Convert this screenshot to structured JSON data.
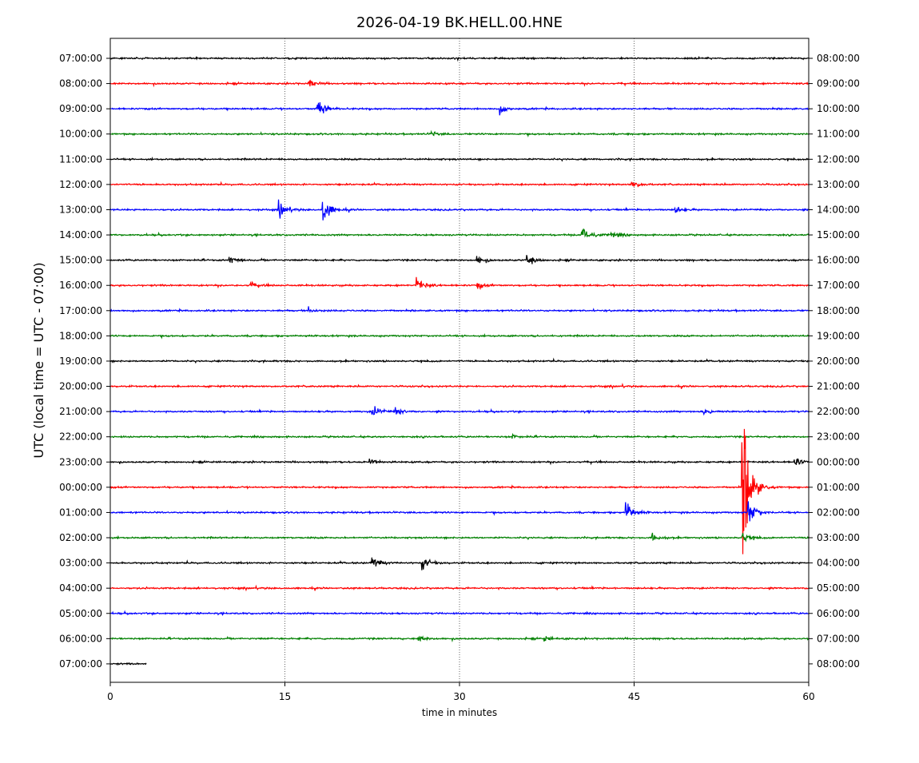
{
  "chart_data": {
    "type": "line",
    "title": "2026-04-19 BK.HELL.00.HNE",
    "xlabel": "time in minutes",
    "ylabel": "UTC (local time = UTC - 07:00)",
    "xlim": [
      0,
      60
    ],
    "x_ticks": [
      "0",
      "15",
      "30",
      "45",
      "60"
    ],
    "x_tick_values": [
      0,
      15,
      30,
      45,
      60
    ],
    "grid": "vertical dotted lines at 15, 30, 45",
    "left_tick_labels": [
      "07:00:00",
      "08:00:00",
      "09:00:00",
      "10:00:00",
      "11:00:00",
      "12:00:00",
      "13:00:00",
      "14:00:00",
      "15:00:00",
      "16:00:00",
      "17:00:00",
      "18:00:00",
      "19:00:00",
      "20:00:00",
      "21:00:00",
      "22:00:00",
      "23:00:00",
      "00:00:00",
      "01:00:00",
      "02:00:00",
      "03:00:00",
      "04:00:00",
      "05:00:00",
      "06:00:00",
      "07:00:00"
    ],
    "right_tick_labels": [
      "08:00:00",
      "09:00:00",
      "10:00:00",
      "11:00:00",
      "12:00:00",
      "13:00:00",
      "14:00:00",
      "15:00:00",
      "16:00:00",
      "17:00:00",
      "18:00:00",
      "19:00:00",
      "20:00:00",
      "21:00:00",
      "22:00:00",
      "23:00:00",
      "00:00:00",
      "01:00:00",
      "02:00:00",
      "03:00:00",
      "04:00:00",
      "05:00:00",
      "06:00:00",
      "07:00:00",
      "08:00:00"
    ],
    "trace_colors": [
      "#000000",
      "#ff0000",
      "#0000ff",
      "#008000"
    ],
    "events": [
      {
        "row": 1,
        "minute": 17.0,
        "amplitude": 0.6
      },
      {
        "row": 2,
        "minute": 17.8,
        "amplitude": 1.4
      },
      {
        "row": 2,
        "minute": 33.5,
        "amplitude": 0.5
      },
      {
        "row": 3,
        "minute": 27.5,
        "amplitude": 0.3
      },
      {
        "row": 5,
        "minute": 44.8,
        "amplitude": 0.6
      },
      {
        "row": 6,
        "minute": 14.5,
        "amplitude": 1.0
      },
      {
        "row": 6,
        "minute": 18.2,
        "amplitude": 2.3
      },
      {
        "row": 6,
        "minute": 48.5,
        "amplitude": 0.4
      },
      {
        "row": 7,
        "minute": 40.5,
        "amplitude": 1.5
      },
      {
        "row": 7,
        "minute": 43.0,
        "amplitude": 0.6
      },
      {
        "row": 8,
        "minute": 10.2,
        "amplitude": 0.5
      },
      {
        "row": 8,
        "minute": 31.5,
        "amplitude": 0.6
      },
      {
        "row": 8,
        "minute": 35.8,
        "amplitude": 0.8
      },
      {
        "row": 9,
        "minute": 12.0,
        "amplitude": 0.4
      },
      {
        "row": 9,
        "minute": 26.3,
        "amplitude": 1.0
      },
      {
        "row": 9,
        "minute": 31.5,
        "amplitude": 0.5
      },
      {
        "row": 10,
        "minute": 17.0,
        "amplitude": 0.4
      },
      {
        "row": 14,
        "minute": 22.5,
        "amplitude": 0.9
      },
      {
        "row": 14,
        "minute": 24.5,
        "amplitude": 0.5
      },
      {
        "row": 14,
        "minute": 51.0,
        "amplitude": 0.4
      },
      {
        "row": 15,
        "minute": 34.5,
        "amplitude": 0.3
      },
      {
        "row": 16,
        "minute": 22.3,
        "amplitude": 0.4
      },
      {
        "row": 16,
        "minute": 58.8,
        "amplitude": 0.6
      },
      {
        "row": 17,
        "minute": 54.3,
        "amplitude": 12.0
      },
      {
        "row": 18,
        "minute": 44.3,
        "amplitude": 1.7
      },
      {
        "row": 18,
        "minute": 54.8,
        "amplitude": 1.8
      },
      {
        "row": 19,
        "minute": 46.5,
        "amplitude": 0.6
      },
      {
        "row": 19,
        "minute": 54.3,
        "amplitude": 0.7
      },
      {
        "row": 20,
        "minute": 22.5,
        "amplitude": 0.9
      },
      {
        "row": 20,
        "minute": 26.8,
        "amplitude": 0.8
      },
      {
        "row": 23,
        "minute": 26.5,
        "amplitude": 0.4
      },
      {
        "row": 23,
        "minute": 37.2,
        "amplitude": 0.4
      }
    ],
    "last_row_end_minute": 3.1
  }
}
